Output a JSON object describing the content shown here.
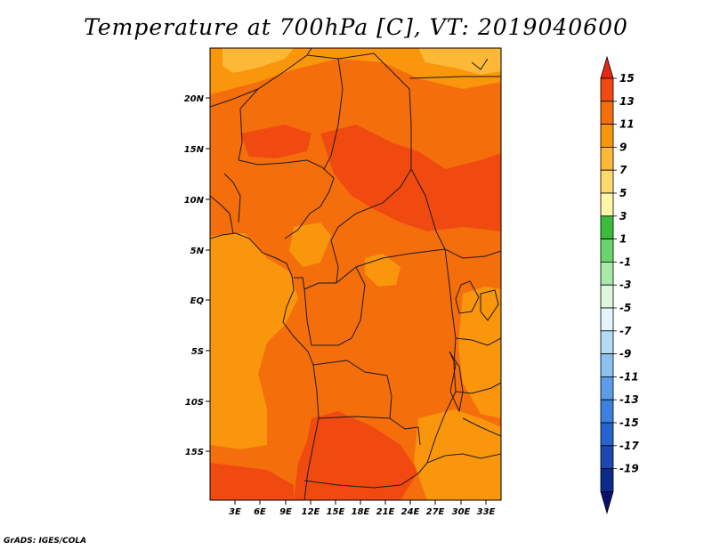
{
  "title": "Temperature at 700hPa [C], VT: 2019040600",
  "credit": "GrADS: IGES/COLA",
  "map": {
    "lat_ticks": [
      "20N",
      "15N",
      "10N",
      "5N",
      "EQ",
      "5S",
      "10S",
      "15S"
    ],
    "lon_ticks": [
      "3E",
      "6E",
      "9E",
      "12E",
      "15E",
      "18E",
      "21E",
      "24E",
      "27E",
      "30E",
      "33E"
    ]
  },
  "colorbar": {
    "labels": [
      "15",
      "13",
      "11",
      "9",
      "7",
      "5",
      "3",
      "1",
      "-1",
      "-3",
      "-5",
      "-7",
      "-9",
      "-11",
      "-13",
      "-15",
      "-17",
      "-19"
    ],
    "colors": [
      "#e62818",
      "#f04a10",
      "#f56e0c",
      "#fa960c",
      "#fdb838",
      "#fdd870",
      "#fdf5a8",
      "#3bbd3b",
      "#6ad56a",
      "#a8eba8",
      "#dcf7dc",
      "#e4f4fb",
      "#b4dcf5",
      "#8cc0f0",
      "#5c9ce8",
      "#3c80e0",
      "#2864d0",
      "#1c48b4",
      "#0c2c8c",
      "#06106e"
    ]
  },
  "colors": {
    "hot": "#f04a10",
    "warm": "#f56e0c",
    "mild": "#fa960c",
    "cool": "#fdb838",
    "border": "#1a1a1a"
  }
}
